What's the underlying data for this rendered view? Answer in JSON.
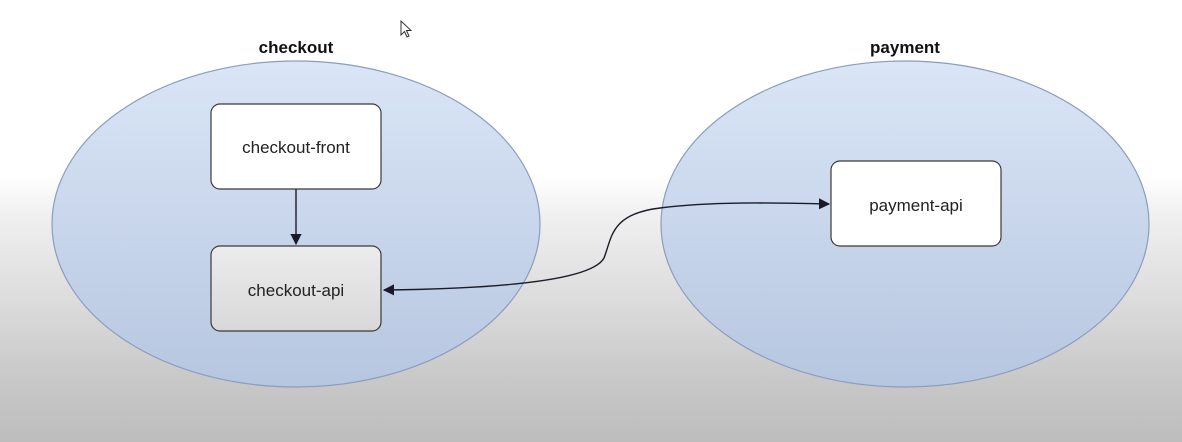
{
  "diagram": {
    "groups": [
      {
        "id": "checkout",
        "label": "checkout"
      },
      {
        "id": "payment",
        "label": "payment"
      }
    ],
    "nodes": [
      {
        "id": "checkout-front",
        "label": "checkout-front",
        "group": "checkout"
      },
      {
        "id": "checkout-api",
        "label": "checkout-api",
        "group": "checkout"
      },
      {
        "id": "payment-api",
        "label": "payment-api",
        "group": "payment"
      }
    ],
    "edges": [
      {
        "from": "checkout-front",
        "to": "checkout-api"
      },
      {
        "from": "payment-api",
        "to": "checkout-api",
        "bidirectional": true
      }
    ]
  },
  "colors": {
    "cluster_fill": "#cddcf2",
    "cluster_stroke": "#8a9cbf",
    "node_fill": "#ffffff",
    "node_fill_muted": "#e6e6e6",
    "edge": "#1a1a2a"
  }
}
